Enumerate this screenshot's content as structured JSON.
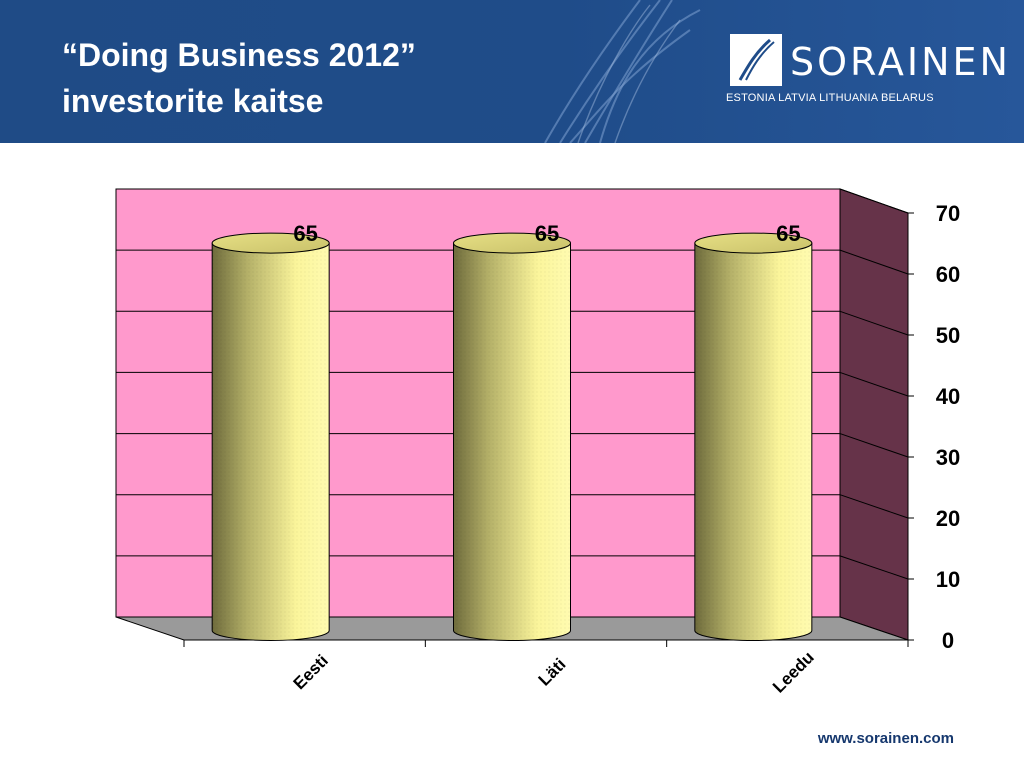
{
  "slide": {
    "title_line1": "“Doing Business 2012”",
    "title_line2": "investorite kaitse"
  },
  "brand": {
    "name": "SORAINEN",
    "tagline": "ESTONIA  LATVIA  LITHUANIA  BELARUS"
  },
  "footer": {
    "url": "www.sorainen.com"
  },
  "colors": {
    "header_bg": "#1f4c89",
    "back_wall": "#ff99cc",
    "side_wall": "#663349",
    "floor": "#9a9a9a",
    "bar": "#ffff99"
  },
  "chart_data": {
    "type": "bar",
    "style": "3d-cylinder",
    "title": "",
    "xlabel": "",
    "ylabel": "",
    "categories": [
      "Eesti",
      "Läti",
      "Leedu"
    ],
    "values": [
      65,
      65,
      65
    ],
    "data_labels": [
      "65",
      "65",
      "65"
    ],
    "ylim": [
      0,
      70
    ],
    "y_ticks": [
      0,
      10,
      20,
      30,
      40,
      50,
      60,
      70
    ],
    "grid": true,
    "legend": "none"
  }
}
